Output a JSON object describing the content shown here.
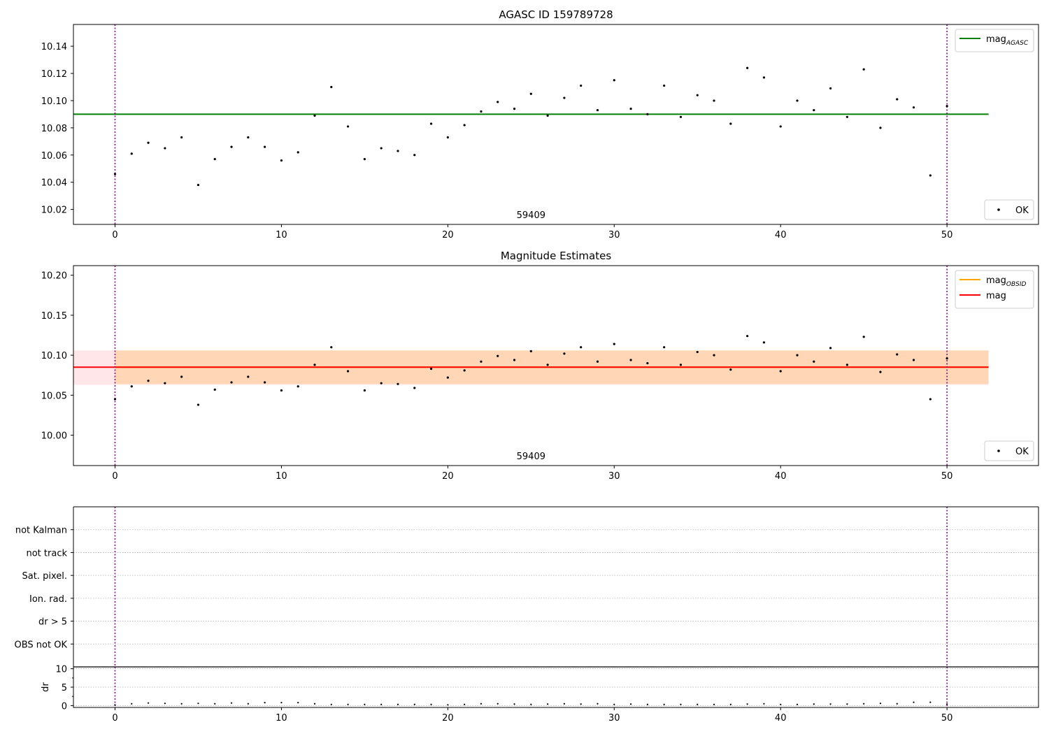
{
  "chart_data": [
    {
      "type": "scatter",
      "title": "AGASC ID 159789728",
      "xlim": [
        -2.5,
        55.5
      ],
      "ylim": [
        10.009,
        10.156
      ],
      "xticks": [
        "0",
        "10",
        "20",
        "30",
        "40",
        "50"
      ],
      "xtick_values": [
        0,
        10,
        20,
        30,
        40,
        50
      ],
      "yticks": [
        "10.02",
        "10.04",
        "10.06",
        "10.08",
        "10.10",
        "10.12",
        "10.14"
      ],
      "ytick_values": [
        10.02,
        10.04,
        10.06,
        10.08,
        10.1,
        10.12,
        10.14
      ],
      "vlines": [
        0,
        50
      ],
      "hline": {
        "y": 10.09,
        "xmin": -2.5,
        "xmax": 52.5,
        "color": "#008000"
      },
      "annotation": {
        "text": "59409",
        "x": 25
      },
      "legend_lines": [
        {
          "label": "mag",
          "sub": "AGASC",
          "color": "#008000"
        }
      ],
      "legend_points": [
        {
          "label": "OK"
        }
      ],
      "x": [
        0,
        1,
        2,
        3,
        4,
        5,
        6,
        7,
        8,
        9,
        10,
        11,
        12,
        13,
        14,
        15,
        16,
        17,
        18,
        19,
        20,
        21,
        22,
        23,
        24,
        25,
        26,
        27,
        28,
        29,
        30,
        31,
        32,
        33,
        34,
        35,
        36,
        37,
        38,
        39,
        40,
        41,
        42,
        43,
        44,
        45,
        46,
        47,
        48,
        49,
        50
      ],
      "y": [
        10.046,
        10.061,
        10.069,
        10.065,
        10.073,
        10.038,
        10.057,
        10.066,
        10.073,
        10.066,
        10.056,
        10.062,
        10.089,
        10.11,
        10.081,
        10.057,
        10.065,
        10.063,
        10.06,
        10.083,
        10.073,
        10.082,
        10.092,
        10.099,
        10.094,
        10.105,
        10.089,
        10.102,
        10.111,
        10.093,
        10.115,
        10.094,
        10.09,
        10.111,
        10.088,
        10.104,
        10.1,
        10.083,
        10.124,
        10.117,
        10.081,
        10.1,
        10.093,
        10.109,
        10.088,
        10.123,
        10.08,
        10.101,
        10.095,
        10.045,
        10.096
      ]
    },
    {
      "type": "scatter",
      "title": "Magnitude Estimates",
      "xlim": [
        -2.5,
        55.5
      ],
      "ylim": [
        9.962,
        10.212
      ],
      "xticks": [
        "0",
        "10",
        "20",
        "30",
        "40",
        "50"
      ],
      "xtick_values": [
        0,
        10,
        20,
        30,
        40,
        50
      ],
      "yticks": [
        "10.00",
        "10.05",
        "10.10",
        "10.15",
        "10.20"
      ],
      "ytick_values": [
        10.0,
        10.05,
        10.1,
        10.15,
        10.2
      ],
      "vlines": [
        0,
        50
      ],
      "bands": [
        {
          "ymin": 10.063,
          "ymax": 10.106,
          "xmin": -2.5,
          "xmax": 52.5,
          "color": "#ffb6c1",
          "opacity": 0.35
        },
        {
          "ymin": 10.064,
          "ymax": 10.106,
          "xmin": 0,
          "xmax": 52.5,
          "color": "#ffa500",
          "opacity": 0.22
        }
      ],
      "hlines": [
        {
          "y": 10.085,
          "xmin": 0,
          "xmax": 52.5,
          "color": "#ffa500"
        },
        {
          "y": 10.085,
          "xmin": -2.5,
          "xmax": 52.5,
          "color": "#ff0000"
        }
      ],
      "annotation": {
        "text": "59409",
        "x": 25
      },
      "legend_lines": [
        {
          "label": "mag",
          "sub": "OBSID",
          "color": "#ffa500"
        },
        {
          "label": "mag",
          "sub": "",
          "color": "#ff0000"
        }
      ],
      "legend_points": [
        {
          "label": "OK"
        }
      ],
      "x": [
        0,
        1,
        2,
        3,
        4,
        5,
        6,
        7,
        8,
        9,
        10,
        11,
        12,
        13,
        14,
        15,
        16,
        17,
        18,
        19,
        20,
        21,
        22,
        23,
        24,
        25,
        26,
        27,
        28,
        29,
        30,
        31,
        32,
        33,
        34,
        35,
        36,
        37,
        38,
        39,
        40,
        41,
        42,
        43,
        44,
        45,
        46,
        47,
        48,
        49,
        50
      ],
      "y": [
        10.045,
        10.061,
        10.068,
        10.065,
        10.073,
        10.038,
        10.057,
        10.066,
        10.073,
        10.066,
        10.056,
        10.061,
        10.088,
        10.11,
        10.08,
        10.056,
        10.065,
        10.064,
        10.059,
        10.083,
        10.072,
        10.081,
        10.092,
        10.099,
        10.094,
        10.105,
        10.088,
        10.102,
        10.11,
        10.092,
        10.114,
        10.094,
        10.09,
        10.11,
        10.088,
        10.104,
        10.1,
        10.082,
        10.124,
        10.116,
        10.08,
        10.1,
        10.092,
        10.109,
        10.088,
        10.123,
        10.079,
        10.101,
        10.094,
        10.045,
        10.096
      ]
    },
    {
      "type": "scatter",
      "title": "",
      "xlim": [
        -2.5,
        55.5
      ],
      "categories": [
        "not Kalman",
        "not track",
        "Sat. pixel.",
        "Ion. rad.",
        "dr > 5",
        "OBS not OK"
      ],
      "vlines": [
        0,
        50
      ]
    },
    {
      "type": "scatter",
      "title": "",
      "ylabel": "dr",
      "xlim": [
        -2.5,
        55.5
      ],
      "ylim": [
        -0.5,
        10.5
      ],
      "xticks": [
        "0",
        "10",
        "20",
        "30",
        "40",
        "50"
      ],
      "xtick_values": [
        0,
        10,
        20,
        30,
        40,
        50
      ],
      "yticks": [
        "0",
        "5",
        "10"
      ],
      "ytick_values": [
        0,
        5,
        10
      ],
      "minor_yticks": [
        2.5,
        7.5
      ],
      "vlines": [
        0,
        50
      ],
      "x": [
        0,
        1,
        2,
        3,
        4,
        5,
        6,
        7,
        8,
        9,
        10,
        11,
        12,
        13,
        14,
        15,
        16,
        17,
        18,
        19,
        20,
        21,
        22,
        23,
        24,
        25,
        26,
        27,
        28,
        29,
        30,
        31,
        32,
        33,
        34,
        35,
        36,
        37,
        38,
        39,
        40,
        41,
        42,
        43,
        44,
        45,
        46,
        47,
        48,
        49,
        50
      ],
      "y": [
        0.2,
        0.5,
        0.7,
        0.6,
        0.5,
        0.6,
        0.5,
        0.7,
        0.5,
        0.8,
        0.8,
        0.8,
        0.5,
        0.3,
        0.3,
        0.3,
        0.3,
        0.3,
        0.3,
        0.3,
        0.2,
        0.3,
        0.5,
        0.5,
        0.4,
        0.3,
        0.4,
        0.5,
        0.4,
        0.5,
        0.3,
        0.4,
        0.3,
        0.3,
        0.3,
        0.3,
        0.3,
        0.3,
        0.4,
        0.5,
        0.3,
        0.3,
        0.4,
        0.4,
        0.4,
        0.5,
        0.6,
        0.5,
        0.9,
        0.9,
        0.4
      ]
    }
  ]
}
